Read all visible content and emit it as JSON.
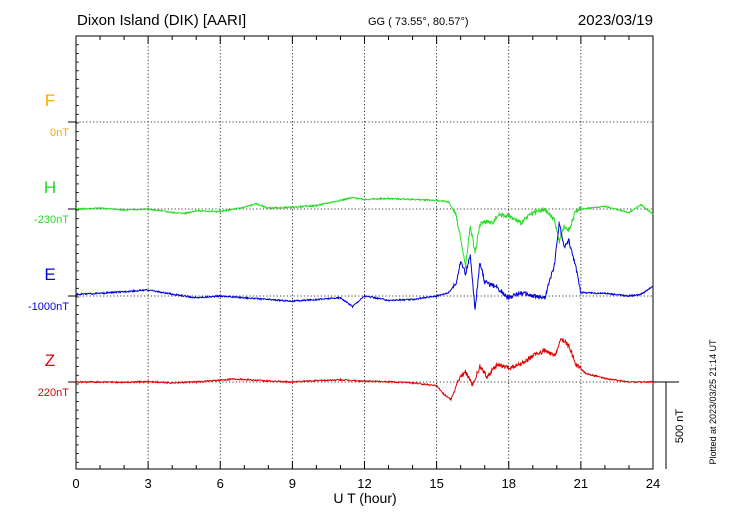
{
  "header": {
    "station": "Dixon Island (DIK)  [AARI]",
    "coords": "GG ( 73.55°,  80.57°)",
    "date": "2023/03/19"
  },
  "footer": {
    "plotted": "Plotted at 2023/03/25 21:14 UT"
  },
  "colors": {
    "F": "#f5a800",
    "H": "#22dd22",
    "E": "#0000dd",
    "Z": "#dd0000",
    "axis": "#000000"
  },
  "chart_data": {
    "type": "line",
    "xlabel": "U T (hour)",
    "xlim": [
      0,
      24
    ],
    "xticks": [
      "0",
      "3",
      "6",
      "9",
      "12",
      "15",
      "18",
      "21",
      "24"
    ],
    "scale_bar_label": "500 nT",
    "scale_bar_nT": 500,
    "series": [
      {
        "name": "F",
        "label": "F",
        "baseline_label": "0nT",
        "baseline_nT": 0,
        "x": [],
        "y": []
      },
      {
        "name": "H",
        "label": "H",
        "baseline_label": "-230nT",
        "baseline_nT": -230,
        "x": [
          0,
          1,
          2,
          3,
          4,
          4.5,
          5,
          6,
          7,
          7.5,
          8,
          9,
          10,
          11,
          11.5,
          12,
          13,
          14,
          15,
          15.5,
          15.8,
          16.0,
          16.2,
          16.4,
          16.6,
          16.8,
          17.0,
          17.3,
          17.6,
          18.0,
          18.5,
          19.0,
          19.5,
          19.9,
          20.1,
          20.3,
          20.5,
          20.8,
          21,
          22,
          23,
          23.5,
          24
        ],
        "y": [
          -230,
          -225,
          -235,
          -230,
          -250,
          -255,
          -240,
          -245,
          -220,
          -200,
          -225,
          -220,
          -210,
          -180,
          -165,
          -175,
          -170,
          -175,
          -180,
          -190,
          -260,
          -400,
          -560,
          -330,
          -480,
          -320,
          -300,
          -310,
          -260,
          -270,
          -310,
          -250,
          -235,
          -290,
          -420,
          -330,
          -350,
          -240,
          -230,
          -215,
          -250,
          -205,
          -260
        ]
      },
      {
        "name": "E",
        "label": "E",
        "baseline_label": "-1000nT",
        "baseline_nT": -1000,
        "x": [
          0,
          1,
          2,
          3,
          4,
          5,
          6,
          7,
          8,
          9,
          10,
          11,
          11.5,
          12,
          13,
          14,
          15,
          15.5,
          15.8,
          16.0,
          16.2,
          16.4,
          16.6,
          16.8,
          17.0,
          17.5,
          18.0,
          18.5,
          19.0,
          19.5,
          19.9,
          20.1,
          20.3,
          20.5,
          20.8,
          21,
          22,
          23,
          23.5,
          24
        ],
        "y": [
          -990,
          -985,
          -975,
          -965,
          -990,
          -1010,
          -1000,
          -1010,
          -1020,
          -1030,
          -1020,
          -1010,
          -1060,
          -1000,
          -1025,
          -1020,
          -1000,
          -980,
          -930,
          -800,
          -870,
          -770,
          -1080,
          -800,
          -920,
          -950,
          -1010,
          -980,
          -1000,
          -1010,
          -820,
          -580,
          -720,
          -680,
          -840,
          -980,
          -985,
          -1000,
          -990,
          -945
        ]
      },
      {
        "name": "Z",
        "label": "Z",
        "baseline_label": "220nT",
        "baseline_nT": 220,
        "x": [
          0,
          1,
          2,
          3,
          4,
          5,
          6,
          6.5,
          7,
          8,
          9,
          10,
          11,
          12,
          13,
          14,
          15,
          15.3,
          15.6,
          15.9,
          16.2,
          16.5,
          16.8,
          17.1,
          17.5,
          18.0,
          18.5,
          19.0,
          19.5,
          19.9,
          20.2,
          20.5,
          20.8,
          21.2,
          22,
          23,
          24
        ],
        "y": [
          220,
          220,
          218,
          222,
          215,
          220,
          230,
          238,
          235,
          225,
          220,
          228,
          232,
          225,
          222,
          215,
          200,
          150,
          120,
          230,
          280,
          200,
          310,
          250,
          320,
          300,
          320,
          370,
          400,
          370,
          470,
          430,
          320,
          270,
          240,
          220,
          220
        ]
      }
    ]
  }
}
